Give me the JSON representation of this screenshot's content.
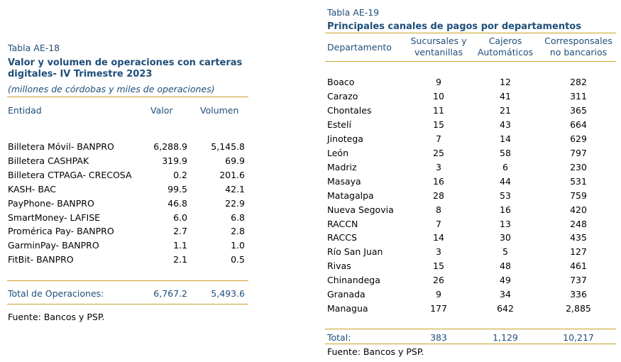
{
  "left": {
    "caption": "Tabla AE-18",
    "title_line1": "Valor y volumen de operaciones con carteras",
    "title_line2": "digitales- IV Trimestre 2023",
    "subtitle": "(millones de córdobas y miles de operaciones)",
    "headers": {
      "entity": "Entidad",
      "value": "Valor",
      "volume": "Volumen"
    },
    "rows": [
      {
        "entity": "Billetera Móvil- BANPRO",
        "value": "6,288.9",
        "volume": "5,145.8"
      },
      {
        "entity": "Billetera CASHPAK",
        "value": "319.9",
        "volume": "69.9"
      },
      {
        "entity": "Billetera CTPAGA- CRECOSA",
        "value": "0.2",
        "volume": "201.6"
      },
      {
        "entity": "KASH- BAC",
        "value": "99.5",
        "volume": "42.1"
      },
      {
        "entity": "PayPhone- BANPRO",
        "value": "46.8",
        "volume": "22.9"
      },
      {
        "entity": "SmartMoney- LAFISE",
        "value": "6.0",
        "volume": "6.8"
      },
      {
        "entity": "Promérica Pay- BANPRO",
        "value": "2.7",
        "volume": "2.8"
      },
      {
        "entity": "GarminPay- BANPRO",
        "value": "1.1",
        "volume": "1.0"
      },
      {
        "entity": "FitBit- BANPRO",
        "value": "2.1",
        "volume": "0.5"
      }
    ],
    "total": {
      "label": "Total de Operaciones:",
      "value": "6,767.2",
      "volume": "5,493.6"
    },
    "source": "Fuente: Bancos y PSP."
  },
  "right": {
    "caption": "Tabla AE-19",
    "title": "Principales canales de pagos por departamentos",
    "headers": {
      "department": "Departamento",
      "branches_l1": "Sucursales y",
      "branches_l2": "ventanillas",
      "atm_l1": "Cajeros",
      "atm_l2": "Automáticos",
      "agents_l1": "Corresponsales",
      "agents_l2": "no bancarios"
    },
    "rows": [
      {
        "dept": "Boaco",
        "branches": "9",
        "atm": "12",
        "agents": "282"
      },
      {
        "dept": "Carazo",
        "branches": "10",
        "atm": "41",
        "agents": "311"
      },
      {
        "dept": "Chontales",
        "branches": "11",
        "atm": "21",
        "agents": "365"
      },
      {
        "dept": "Estelí",
        "branches": "15",
        "atm": "43",
        "agents": "664"
      },
      {
        "dept": "Jinotega",
        "branches": "7",
        "atm": "14",
        "agents": "629"
      },
      {
        "dept": "León",
        "branches": "25",
        "atm": "58",
        "agents": "797"
      },
      {
        "dept": "Madriz",
        "branches": "3",
        "atm": "6",
        "agents": "230"
      },
      {
        "dept": "Masaya",
        "branches": "16",
        "atm": "44",
        "agents": "531"
      },
      {
        "dept": "Matagalpa",
        "branches": "28",
        "atm": "53",
        "agents": "759"
      },
      {
        "dept": "Nueva Segovia",
        "branches": "8",
        "atm": "16",
        "agents": "420"
      },
      {
        "dept": "RACCN",
        "branches": "7",
        "atm": "13",
        "agents": "248"
      },
      {
        "dept": "RACCS",
        "branches": "14",
        "atm": "30",
        "agents": "435"
      },
      {
        "dept": "Río San Juan",
        "branches": "3",
        "atm": "5",
        "agents": "127"
      },
      {
        "dept": "Rivas",
        "branches": "15",
        "atm": "48",
        "agents": "461"
      },
      {
        "dept": "Chinandega",
        "branches": "26",
        "atm": "49",
        "agents": "737"
      },
      {
        "dept": "Granada",
        "branches": "9",
        "atm": "34",
        "agents": "336"
      },
      {
        "dept": "Managua",
        "branches": "177",
        "atm": "642",
        "agents": "2,885"
      }
    ],
    "total": {
      "label": "Total:",
      "branches": "383",
      "atm": "1,129",
      "agents": "10,217"
    },
    "source": "Fuente: Bancos y PSP."
  }
}
